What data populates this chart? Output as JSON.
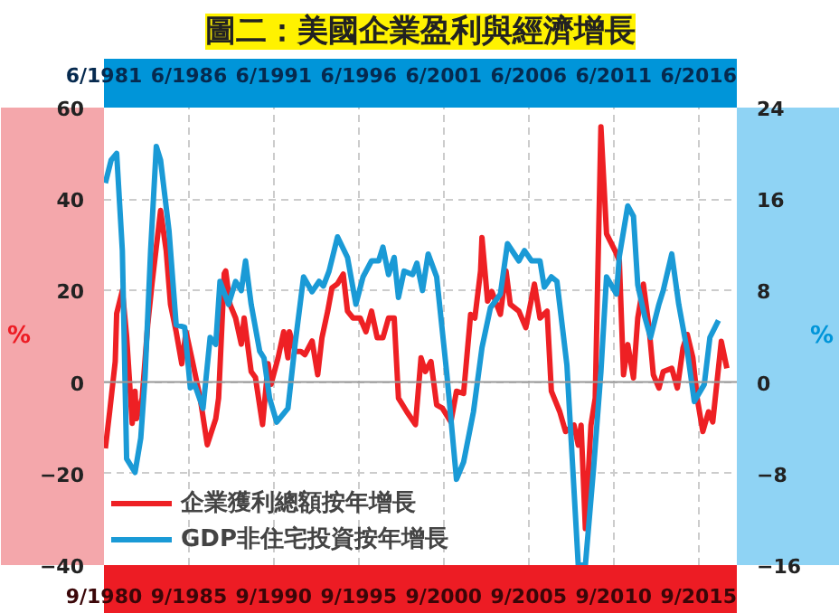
{
  "chart_data": {
    "type": "line",
    "title": "圖二：美國企業盈利與經濟增長",
    "ylabel": "%",
    "y2label": "%",
    "xlim": [
      "1980-09",
      "2017-12"
    ],
    "xticks": [
      {
        "value": "1980-09",
        "label": "9/1980"
      },
      {
        "value": "1985-09",
        "label": "9/1985"
      },
      {
        "value": "1990-09",
        "label": "9/1990"
      },
      {
        "value": "1995-09",
        "label": "9/1995"
      },
      {
        "value": "2000-09",
        "label": "9/2000"
      },
      {
        "value": "2005-09",
        "label": "9/2005"
      },
      {
        "value": "2010-09",
        "label": "9/2010"
      },
      {
        "value": "2015-09",
        "label": "9/2015"
      }
    ],
    "x2lim": [
      "1981-06",
      "2018-09"
    ],
    "x2ticks": [
      {
        "value": "1981-06",
        "label": "6/1981"
      },
      {
        "value": "1986-06",
        "label": "6/1986"
      },
      {
        "value": "1991-06",
        "label": "6/1991"
      },
      {
        "value": "1996-06",
        "label": "6/1996"
      },
      {
        "value": "2001-06",
        "label": "6/2001"
      },
      {
        "value": "2006-06",
        "label": "6/2006"
      },
      {
        "value": "2011-06",
        "label": "6/2011"
      },
      {
        "value": "2016-06",
        "label": "6/2016"
      }
    ],
    "ylim": [
      -40,
      60
    ],
    "yticks": [
      -40,
      -20,
      0,
      20,
      40,
      60
    ],
    "y2lim": [
      -16,
      24
    ],
    "y2ticks": [
      -16,
      -8,
      0,
      8,
      16,
      24
    ],
    "grid": true,
    "legend": "bottom left",
    "marker": "none",
    "line_style": "solid",
    "ref_lines": [
      {
        "axis": "y",
        "value": 0,
        "color": "#999999"
      }
    ],
    "series": [
      {
        "name": "企業獲利總額按年增長",
        "color": "#ee2024",
        "x": [
          "1980-10",
          "1981-01",
          "1981-05",
          "1981-06",
          "1981-10",
          "1982-01",
          "1982-05",
          "1982-07",
          "1982-08",
          "1982-12",
          "1983-04",
          "1983-07",
          "1984-01",
          "1984-05",
          "1984-08",
          "1984-12",
          "1985-04",
          "1985-07",
          "1985-11",
          "1986-05",
          "1986-10",
          "1987-04",
          "1987-06",
          "1987-10",
          "1987-11",
          "1988-02",
          "1988-06",
          "1988-10",
          "1988-12",
          "1989-05",
          "1989-08",
          "1990-01",
          "1990-05",
          "1990-07",
          "1990-12",
          "1991-04",
          "1991-07",
          "1991-08",
          "1991-12",
          "1992-04",
          "1992-07",
          "1992-12",
          "1993-04",
          "1993-07",
          "1993-11",
          "1994-02",
          "1994-06",
          "1994-10",
          "1995-01",
          "1995-05",
          "1995-10",
          "1996-02",
          "1996-06",
          "1996-10",
          "1997-02",
          "1997-06",
          "1997-10",
          "1998-01",
          "1998-07",
          "1999-01",
          "1999-05",
          "1999-08",
          "1999-12",
          "2000-04",
          "2000-08",
          "2001-02",
          "2001-06",
          "2001-11",
          "2002-04",
          "2002-07",
          "2002-11",
          "2002-12",
          "2003-04",
          "2003-07",
          "2004-01",
          "2004-05",
          "2004-08",
          "2005-02",
          "2005-07",
          "2006-01",
          "2006-05",
          "2006-10",
          "2007-01",
          "2007-07",
          "2007-11",
          "2008-05",
          "2008-08",
          "2008-10",
          "2009-01",
          "2009-05",
          "2009-08",
          "2009-12",
          "2010-04",
          "2010-10",
          "2011-01",
          "2011-04",
          "2011-07",
          "2011-11",
          "2012-02",
          "2012-06",
          "2012-10",
          "2013-01",
          "2013-05",
          "2013-08",
          "2014-02",
          "2014-06",
          "2014-10",
          "2015-01",
          "2015-05",
          "2015-08",
          "2015-12",
          "2016-04",
          "2016-07",
          "2017-01",
          "2017-05"
        ],
        "values": [
          -14.5,
          -6.5,
          4.5,
          15,
          20,
          10,
          -9,
          -2,
          -8,
          -3.5,
          12.7,
          21.5,
          37.5,
          28.7,
          17,
          11,
          4,
          11,
          5.3,
          -3.5,
          -13.7,
          -8,
          -3.5,
          23.7,
          24.3,
          17,
          14,
          8.3,
          14,
          2.3,
          1,
          -9.3,
          4,
          -0.5,
          5.3,
          11,
          5.3,
          11,
          6.7,
          6.7,
          6,
          9,
          1.6,
          9.7,
          15.5,
          20.6,
          21.5,
          23.6,
          15.5,
          14,
          14,
          11,
          15.5,
          9.7,
          9.7,
          14,
          14,
          -3.5,
          -6.5,
          -9.3,
          5.3,
          2.3,
          4.5,
          -5,
          -5.7,
          -8.7,
          -2,
          -2.5,
          14.8,
          14,
          24.3,
          31.6,
          17.7,
          19.8,
          14.8,
          24.3,
          17,
          15.5,
          11.9,
          21.4,
          14,
          15.5,
          -2,
          -6.5,
          -10.8,
          -9.4,
          -13.8,
          -9.4,
          -32,
          -9.4,
          -3.5,
          55.8,
          32.4,
          28.7,
          26.5,
          1.6,
          8.2,
          0.9,
          14,
          21.4,
          11.9,
          1.6,
          -1.3,
          2.3,
          3,
          -1.3,
          7.5,
          10.4,
          5.3,
          -3.5,
          -10.8,
          -6.5,
          -8.7,
          8.9,
          3
        ]
      },
      {
        "name": "GDP非住宅投資按年增長",
        "color": "#1a9ad6",
        "axis": "y2",
        "x": [
          "1980-10",
          "1981-02",
          "1981-06",
          "1981-10",
          "1982-01",
          "1982-07",
          "1982-11",
          "1983-02",
          "1983-06",
          "1983-10",
          "1984-01",
          "1984-07",
          "1984-12",
          "1985-06",
          "1985-10",
          "1986-01",
          "1986-07",
          "1986-12",
          "1987-04",
          "1987-07",
          "1988-01",
          "1988-06",
          "1988-10",
          "1989-01",
          "1989-05",
          "1989-11",
          "1990-02",
          "1990-06",
          "1990-11",
          "1991-07",
          "1991-12",
          "1992-06",
          "1992-12",
          "1993-05",
          "1993-08",
          "1993-12",
          "1994-06",
          "1995-01",
          "1995-07",
          "1995-12",
          "1996-06",
          "1996-11",
          "1997-02",
          "1997-06",
          "1997-10",
          "1998-01",
          "1998-05",
          "1998-11",
          "1999-02",
          "1999-06",
          "1999-10",
          "2000-04",
          "2000-11",
          "2001-06",
          "2001-11",
          "2002-06",
          "2002-12",
          "2003-06",
          "2004-01",
          "2004-06",
          "2005-02",
          "2005-06",
          "2005-11",
          "2006-05",
          "2006-08",
          "2007-01",
          "2007-05",
          "2007-12",
          "2008-08",
          "2009-01",
          "2009-07",
          "2009-12",
          "2010-04",
          "2010-11",
          "2011-01",
          "2011-07",
          "2011-11",
          "2012-02",
          "2012-07",
          "2012-11",
          "2013-05",
          "2013-08",
          "2014-02",
          "2014-07",
          "2015-01",
          "2015-06",
          "2016-01",
          "2016-05",
          "2016-11"
        ],
        "values": [
          17.4,
          19.4,
          20,
          11.5,
          -6.7,
          -7.9,
          -4.9,
          0.4,
          11.5,
          20.6,
          19.4,
          13.2,
          5,
          4.8,
          -0.5,
          -0.2,
          -2.3,
          3.9,
          3.3,
          8.8,
          6.8,
          8.8,
          8,
          10.6,
          6.8,
          2.7,
          2.1,
          -1.4,
          -3.5,
          -2.3,
          3.3,
          9.2,
          7.9,
          8.8,
          8.4,
          9.7,
          12.7,
          10.9,
          6.8,
          9.2,
          10.6,
          10.6,
          11.8,
          9.4,
          10.9,
          7.4,
          9.7,
          9.4,
          10.4,
          8,
          11.2,
          9.2,
          0.9,
          -8.5,
          -7,
          -2.6,
          3,
          6.5,
          7.7,
          12.1,
          10.6,
          11.5,
          10.6,
          10.6,
          8.3,
          9.2,
          8.8,
          1.5,
          -16,
          -16,
          -7.3,
          0.9,
          9.2,
          7.7,
          11,
          15.4,
          14.5,
          8.5,
          5.7,
          3.9,
          6.8,
          8,
          11.2,
          6.8,
          2.7,
          -1.7,
          -0.2,
          3.9,
          5.4
        ]
      }
    ]
  }
}
